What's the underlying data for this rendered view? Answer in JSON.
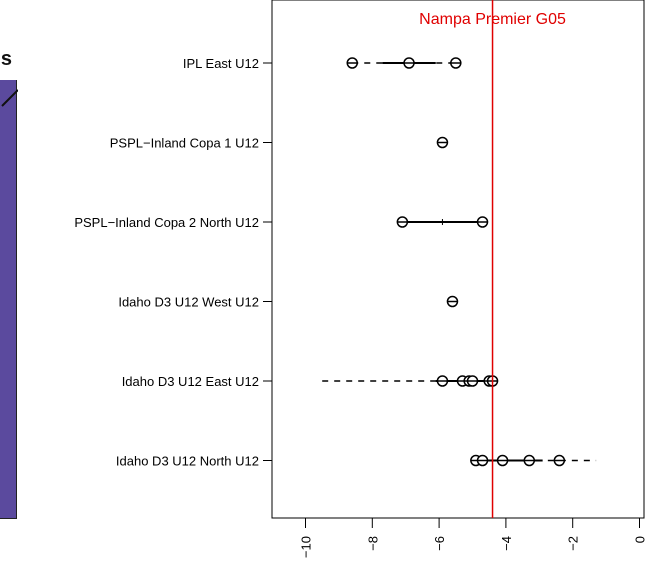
{
  "left_fragment": {
    "text": "ths"
  },
  "chart_data": {
    "type": "forest",
    "reference_line": {
      "label": "Nampa Premier G05",
      "x": -4.4,
      "color": "#e00000"
    },
    "xlim": [
      -11.1,
      0
    ],
    "x_ticks": [
      -10,
      -8,
      -6,
      -4,
      -2,
      0
    ],
    "x_tick_labels": [
      "−10",
      "−8",
      "−6",
      "−4",
      "−2",
      "0"
    ],
    "categories": [
      "IPL East U12",
      "PSPL−Inland Copa 1 U12",
      "PSPL−Inland Copa 2 North U12",
      "Idaho D3 U12 West U12",
      "Idaho D3 U12 East U12",
      "Idaho D3 U12 North U12"
    ],
    "rows": [
      {
        "category": "IPL East U12",
        "points": [
          -8.6,
          -6.9,
          -5.5
        ],
        "solid": [
          -7.7,
          -6.1
        ],
        "dashed": [
          -8.6,
          -5.5
        ]
      },
      {
        "category": "PSPL−Inland Copa 1 U12",
        "points": [
          -5.9
        ],
        "solid": null,
        "dashed": null
      },
      {
        "category": "PSPL−Inland Copa 2 North U12",
        "points": [
          -7.1,
          -4.7
        ],
        "solid": [
          -7.1,
          -4.7
        ],
        "dashed": null,
        "center_tick": -5.9
      },
      {
        "category": "Idaho D3 U12 West U12",
        "points": [
          -5.6
        ],
        "solid": null,
        "dashed": null
      },
      {
        "category": "Idaho D3 U12 East U12",
        "points": [
          -5.9,
          -5.3,
          -5.1,
          -5.0,
          -4.5,
          -4.4
        ],
        "solid": [
          -6.1,
          -4.4
        ],
        "dashed": [
          -9.5,
          -4.4
        ]
      },
      {
        "category": "Idaho D3 U12 North U12",
        "points": [
          -4.9,
          -4.7,
          -4.1,
          -3.3,
          -2.4
        ],
        "solid": [
          -4.9,
          -2.9
        ],
        "dashed": [
          -4.9,
          -1.3
        ]
      }
    ]
  }
}
